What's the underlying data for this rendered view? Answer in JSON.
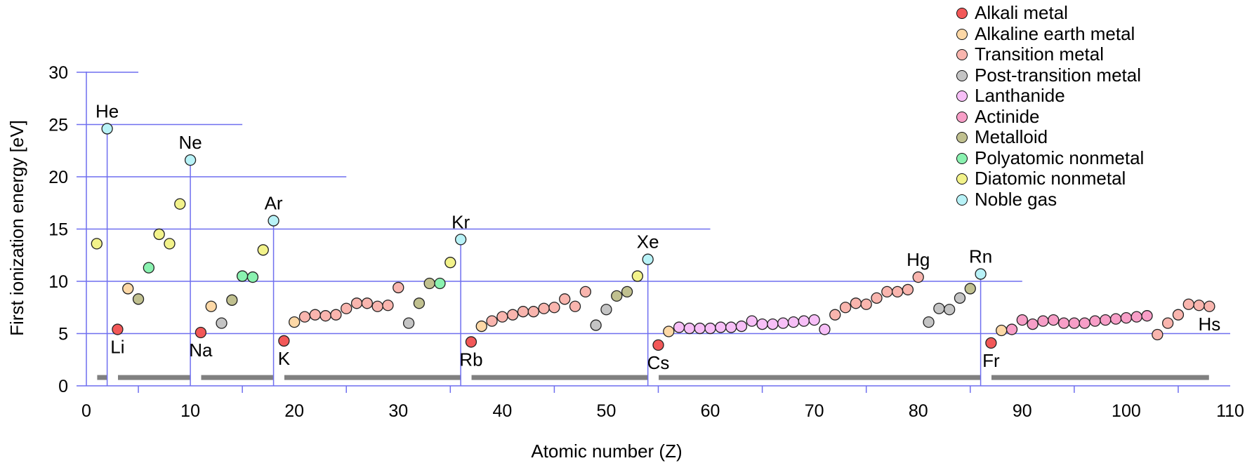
{
  "chart_data": {
    "type": "scatter",
    "title": "",
    "xlabel": "Atomic number (Z)",
    "ylabel": "First ionization energy [eV]",
    "xlim": [
      0,
      110
    ],
    "ylim": [
      0,
      30
    ],
    "x_ticks": [
      0,
      10,
      20,
      30,
      40,
      50,
      60,
      70,
      80,
      90,
      100,
      110
    ],
    "y_ticks": [
      0,
      5,
      10,
      15,
      20,
      25,
      30
    ],
    "grid": "partial horizontal lines at 5 eV steps, vertical drop lines at noble gases",
    "legend_position": "top-right",
    "colors": {
      "Alkali metal": "#f25858",
      "Alkaline earth metal": "#fdd8a6",
      "Transition metal": "#f9b5ae",
      "Post-transition metal": "#c4c4c4",
      "Lanthanide": "#f7bff7",
      "Actinide": "#f79ec7",
      "Metalloid": "#c0c08f",
      "Polyatomic nonmetal": "#8af2b0",
      "Diatomic nonmetal": "#f2f28a",
      "Noble gas": "#b8f2f7",
      "axis": "#6f6fef",
      "period_bar": "#808080"
    },
    "categories": [
      "Alkali metal",
      "Alkaline earth metal",
      "Transition metal",
      "Post-transition metal",
      "Lanthanide",
      "Actinide",
      "Metalloid",
      "Polyatomic nonmetal",
      "Diatomic nonmetal",
      "Noble gas"
    ],
    "points": [
      [
        1,
        13.6,
        "Diatomic nonmetal"
      ],
      [
        2,
        24.6,
        "Noble gas"
      ],
      [
        3,
        5.4,
        "Alkali metal"
      ],
      [
        4,
        9.3,
        "Alkaline earth metal"
      ],
      [
        5,
        8.3,
        "Metalloid"
      ],
      [
        6,
        11.3,
        "Polyatomic nonmetal"
      ],
      [
        7,
        14.5,
        "Diatomic nonmetal"
      ],
      [
        8,
        13.6,
        "Diatomic nonmetal"
      ],
      [
        9,
        17.4,
        "Diatomic nonmetal"
      ],
      [
        10,
        21.6,
        "Noble gas"
      ],
      [
        11,
        5.1,
        "Alkali metal"
      ],
      [
        12,
        7.6,
        "Alkaline earth metal"
      ],
      [
        13,
        6.0,
        "Post-transition metal"
      ],
      [
        14,
        8.2,
        "Metalloid"
      ],
      [
        15,
        10.5,
        "Polyatomic nonmetal"
      ],
      [
        16,
        10.4,
        "Polyatomic nonmetal"
      ],
      [
        17,
        13.0,
        "Diatomic nonmetal"
      ],
      [
        18,
        15.8,
        "Noble gas"
      ],
      [
        19,
        4.3,
        "Alkali metal"
      ],
      [
        20,
        6.1,
        "Alkaline earth metal"
      ],
      [
        21,
        6.6,
        "Transition metal"
      ],
      [
        22,
        6.8,
        "Transition metal"
      ],
      [
        23,
        6.7,
        "Transition metal"
      ],
      [
        24,
        6.8,
        "Transition metal"
      ],
      [
        25,
        7.4,
        "Transition metal"
      ],
      [
        26,
        7.9,
        "Transition metal"
      ],
      [
        27,
        7.9,
        "Transition metal"
      ],
      [
        28,
        7.6,
        "Transition metal"
      ],
      [
        29,
        7.7,
        "Transition metal"
      ],
      [
        30,
        9.4,
        "Transition metal"
      ],
      [
        31,
        6.0,
        "Post-transition metal"
      ],
      [
        32,
        7.9,
        "Metalloid"
      ],
      [
        33,
        9.8,
        "Metalloid"
      ],
      [
        34,
        9.8,
        "Polyatomic nonmetal"
      ],
      [
        35,
        11.8,
        "Diatomic nonmetal"
      ],
      [
        36,
        14.0,
        "Noble gas"
      ],
      [
        37,
        4.2,
        "Alkali metal"
      ],
      [
        38,
        5.7,
        "Alkaline earth metal"
      ],
      [
        39,
        6.2,
        "Transition metal"
      ],
      [
        40,
        6.6,
        "Transition metal"
      ],
      [
        41,
        6.8,
        "Transition metal"
      ],
      [
        42,
        7.1,
        "Transition metal"
      ],
      [
        43,
        7.1,
        "Transition metal"
      ],
      [
        44,
        7.4,
        "Transition metal"
      ],
      [
        45,
        7.5,
        "Transition metal"
      ],
      [
        46,
        8.3,
        "Transition metal"
      ],
      [
        47,
        7.6,
        "Transition metal"
      ],
      [
        48,
        9.0,
        "Transition metal"
      ],
      [
        49,
        5.8,
        "Post-transition metal"
      ],
      [
        50,
        7.3,
        "Post-transition metal"
      ],
      [
        51,
        8.6,
        "Metalloid"
      ],
      [
        52,
        9.0,
        "Metalloid"
      ],
      [
        53,
        10.5,
        "Diatomic nonmetal"
      ],
      [
        54,
        12.1,
        "Noble gas"
      ],
      [
        55,
        3.9,
        "Alkali metal"
      ],
      [
        56,
        5.2,
        "Alkaline earth metal"
      ],
      [
        57,
        5.6,
        "Lanthanide"
      ],
      [
        58,
        5.5,
        "Lanthanide"
      ],
      [
        59,
        5.5,
        "Lanthanide"
      ],
      [
        60,
        5.5,
        "Lanthanide"
      ],
      [
        61,
        5.6,
        "Lanthanide"
      ],
      [
        62,
        5.6,
        "Lanthanide"
      ],
      [
        63,
        5.7,
        "Lanthanide"
      ],
      [
        64,
        6.2,
        "Lanthanide"
      ],
      [
        65,
        5.9,
        "Lanthanide"
      ],
      [
        66,
        5.9,
        "Lanthanide"
      ],
      [
        67,
        6.0,
        "Lanthanide"
      ],
      [
        68,
        6.1,
        "Lanthanide"
      ],
      [
        69,
        6.2,
        "Lanthanide"
      ],
      [
        70,
        6.3,
        "Lanthanide"
      ],
      [
        71,
        5.4,
        "Lanthanide"
      ],
      [
        72,
        6.8,
        "Transition metal"
      ],
      [
        73,
        7.5,
        "Transition metal"
      ],
      [
        74,
        7.9,
        "Transition metal"
      ],
      [
        75,
        7.8,
        "Transition metal"
      ],
      [
        76,
        8.4,
        "Transition metal"
      ],
      [
        77,
        9.0,
        "Transition metal"
      ],
      [
        78,
        9.0,
        "Transition metal"
      ],
      [
        79,
        9.2,
        "Transition metal"
      ],
      [
        80,
        10.4,
        "Transition metal"
      ],
      [
        81,
        6.1,
        "Post-transition metal"
      ],
      [
        82,
        7.4,
        "Post-transition metal"
      ],
      [
        83,
        7.3,
        "Post-transition metal"
      ],
      [
        84,
        8.4,
        "Post-transition metal"
      ],
      [
        85,
        9.3,
        "Metalloid"
      ],
      [
        86,
        10.7,
        "Noble gas"
      ],
      [
        87,
        4.1,
        "Alkali metal"
      ],
      [
        88,
        5.3,
        "Alkaline earth metal"
      ],
      [
        89,
        5.4,
        "Actinide"
      ],
      [
        90,
        6.3,
        "Actinide"
      ],
      [
        91,
        5.9,
        "Actinide"
      ],
      [
        92,
        6.2,
        "Actinide"
      ],
      [
        93,
        6.3,
        "Actinide"
      ],
      [
        94,
        6.0,
        "Actinide"
      ],
      [
        95,
        6.0,
        "Actinide"
      ],
      [
        96,
        6.0,
        "Actinide"
      ],
      [
        97,
        6.2,
        "Actinide"
      ],
      [
        98,
        6.3,
        "Actinide"
      ],
      [
        99,
        6.4,
        "Actinide"
      ],
      [
        100,
        6.5,
        "Actinide"
      ],
      [
        101,
        6.6,
        "Actinide"
      ],
      [
        102,
        6.7,
        "Actinide"
      ],
      [
        103,
        4.9,
        "Transition metal"
      ],
      [
        104,
        6.0,
        "Transition metal"
      ],
      [
        105,
        6.8,
        "Transition metal"
      ],
      [
        106,
        7.8,
        "Transition metal"
      ],
      [
        107,
        7.7,
        "Transition metal"
      ],
      [
        108,
        7.6,
        "Transition metal"
      ]
    ],
    "element_labels": [
      {
        "text": "He",
        "z": 2,
        "pos": "above"
      },
      {
        "text": "Li",
        "z": 3,
        "pos": "below"
      },
      {
        "text": "Ne",
        "z": 10,
        "pos": "above"
      },
      {
        "text": "Na",
        "z": 11,
        "pos": "below"
      },
      {
        "text": "Ar",
        "z": 18,
        "pos": "above"
      },
      {
        "text": "K",
        "z": 19,
        "pos": "below"
      },
      {
        "text": "Kr",
        "z": 36,
        "pos": "above"
      },
      {
        "text": "Rb",
        "z": 37,
        "pos": "below"
      },
      {
        "text": "Xe",
        "z": 54,
        "pos": "above"
      },
      {
        "text": "Cs",
        "z": 55,
        "pos": "below"
      },
      {
        "text": "Hg",
        "z": 80,
        "pos": "above"
      },
      {
        "text": "Rn",
        "z": 86,
        "pos": "above"
      },
      {
        "text": "Fr",
        "z": 87,
        "pos": "below"
      },
      {
        "text": "Hs",
        "z": 108,
        "pos": "below"
      }
    ],
    "noble_gas_z": [
      2,
      10,
      18,
      36,
      54,
      86
    ],
    "gridlines": [
      {
        "y": 30,
        "x_end": 5
      },
      {
        "y": 25,
        "x_end": 15
      },
      {
        "y": 20,
        "x_end": 25
      },
      {
        "y": 15,
        "x_end": 60
      },
      {
        "y": 10,
        "x_end": 90
      },
      {
        "y": 5,
        "x_end": 110
      }
    ],
    "period_bars": [
      [
        1,
        2
      ],
      [
        3,
        10
      ],
      [
        11,
        18
      ],
      [
        19,
        36
      ],
      [
        37,
        54
      ],
      [
        55,
        86
      ],
      [
        87,
        108
      ]
    ],
    "period_bar_y": 0.8
  }
}
